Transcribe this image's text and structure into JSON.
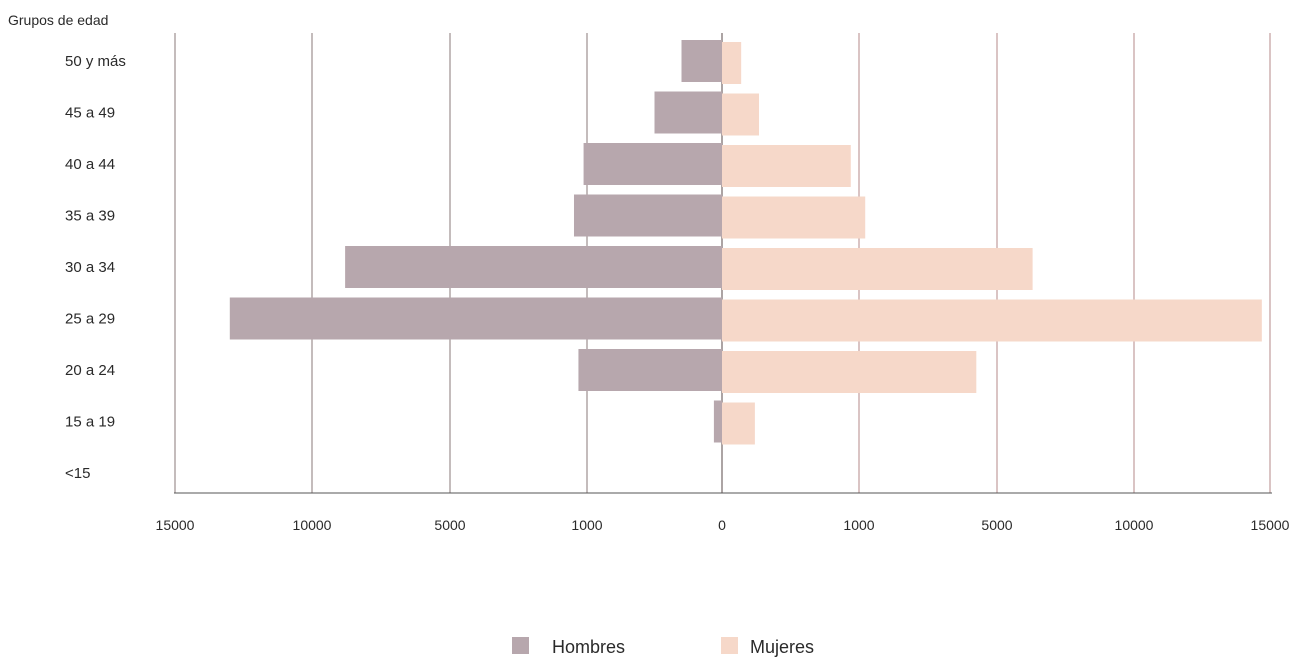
{
  "chart_data": {
    "type": "bar",
    "orientation": "horizontal",
    "layout": "population-pyramid",
    "ylabel": "Grupos de edad",
    "categories": [
      "50 y más",
      "45 a 49",
      "40 a 44",
      "35 a 39",
      "30 a 34",
      "25 a 29",
      "20 a 24",
      "15 a 19",
      "<15"
    ],
    "x_tick_labels": [
      "15000",
      "10000",
      "5000",
      "1000",
      "0",
      "1000",
      "5000",
      "10000",
      "15000"
    ],
    "x_tick_values": [
      -15000,
      -10000,
      -5000,
      -1000,
      0,
      1000,
      5000,
      10000,
      15000
    ],
    "xlim": [
      -15000,
      15000
    ],
    "grid": "vertical",
    "legend_position": "bottom-center",
    "series": [
      {
        "name": "Hombres",
        "color": "#b7a7ad",
        "values": [
          -300,
          -500,
          -1100,
          -1380,
          -8800,
          -13000,
          -1250,
          -60,
          0
        ]
      },
      {
        "name": "Mujeres",
        "color": "#f6d8c9",
        "values": [
          140,
          270,
          940,
          1180,
          6300,
          14700,
          4400,
          240,
          0
        ]
      }
    ]
  }
}
